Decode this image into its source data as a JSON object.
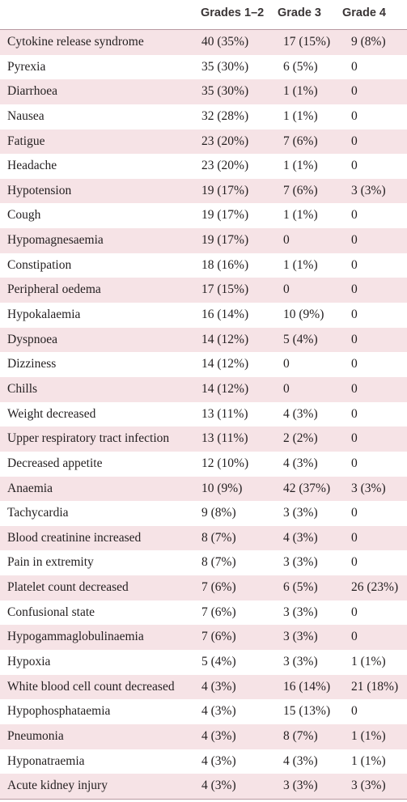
{
  "columns": [
    "",
    "Grades 1–2",
    "Grade 3",
    "Grade 4"
  ],
  "rows": [
    {
      "event": "Cytokine release syndrome",
      "g12": "40 (35%)",
      "g3": "17 (15%)",
      "g4": "9 (8%)"
    },
    {
      "event": "Pyrexia",
      "g12": "35 (30%)",
      "g3": "6 (5%)",
      "g4": "0"
    },
    {
      "event": "Diarrhoea",
      "g12": "35 (30%)",
      "g3": "1 (1%)",
      "g4": "0"
    },
    {
      "event": "Nausea",
      "g12": "32 (28%)",
      "g3": "1 (1%)",
      "g4": "0"
    },
    {
      "event": "Fatigue",
      "g12": "23 (20%)",
      "g3": "7 (6%)",
      "g4": "0"
    },
    {
      "event": "Headache",
      "g12": "23 (20%)",
      "g3": "1 (1%)",
      "g4": "0"
    },
    {
      "event": "Hypotension",
      "g12": "19 (17%)",
      "g3": "7 (6%)",
      "g4": "3 (3%)"
    },
    {
      "event": "Cough",
      "g12": "19 (17%)",
      "g3": "1 (1%)",
      "g4": "0"
    },
    {
      "event": "Hypomagnesaemia",
      "g12": "19 (17%)",
      "g3": "0",
      "g4": "0"
    },
    {
      "event": "Constipation",
      "g12": "18 (16%)",
      "g3": "1 (1%)",
      "g4": "0"
    },
    {
      "event": "Peripheral oedema",
      "g12": "17 (15%)",
      "g3": "0",
      "g4": "0"
    },
    {
      "event": "Hypokalaemia",
      "g12": "16 (14%)",
      "g3": "10 (9%)",
      "g4": "0"
    },
    {
      "event": "Dyspnoea",
      "g12": "14 (12%)",
      "g3": "5 (4%)",
      "g4": "0"
    },
    {
      "event": "Dizziness",
      "g12": "14 (12%)",
      "g3": "0",
      "g4": "0"
    },
    {
      "event": "Chills",
      "g12": "14 (12%)",
      "g3": "0",
      "g4": "0"
    },
    {
      "event": "Weight decreased",
      "g12": "13 (11%)",
      "g3": "4 (3%)",
      "g4": "0"
    },
    {
      "event": "Upper respiratory tract infection",
      "g12": "13 (11%)",
      "g3": "2 (2%)",
      "g4": "0"
    },
    {
      "event": "Decreased appetite",
      "g12": "12 (10%)",
      "g3": "4 (3%)",
      "g4": "0"
    },
    {
      "event": "Anaemia",
      "g12": "10 (9%)",
      "g3": "42 (37%)",
      "g4": "3 (3%)"
    },
    {
      "event": "Tachycardia",
      "g12": "9 (8%)",
      "g3": "3 (3%)",
      "g4": "0"
    },
    {
      "event": "Blood creatinine increased",
      "g12": "8 (7%)",
      "g3": "4 (3%)",
      "g4": "0"
    },
    {
      "event": "Pain in extremity",
      "g12": "8 (7%)",
      "g3": "3 (3%)",
      "g4": "0"
    },
    {
      "event": "Platelet count decreased",
      "g12": "7 (6%)",
      "g3": "6 (5%)",
      "g4": "26 (23%)"
    },
    {
      "event": "Confusional state",
      "g12": "7 (6%)",
      "g3": "3 (3%)",
      "g4": "0"
    },
    {
      "event": "Hypogammaglobulinaemia",
      "g12": "7 (6%)",
      "g3": "3 (3%)",
      "g4": "0"
    },
    {
      "event": "Hypoxia",
      "g12": "5 (4%)",
      "g3": "3 (3%)",
      "g4": "1 (1%)"
    },
    {
      "event": "White blood cell count decreased",
      "g12": "4 (3%)",
      "g3": "16 (14%)",
      "g4": "21 (18%)"
    },
    {
      "event": "Hypophosphataemia",
      "g12": "4 (3%)",
      "g3": "15 (13%)",
      "g4": "0"
    },
    {
      "event": "Pneumonia",
      "g12": "4 (3%)",
      "g3": "8 (7%)",
      "g4": "1 (1%)"
    },
    {
      "event": "Hyponatraemia",
      "g12": "4 (3%)",
      "g3": "4 (3%)",
      "g4": "1 (1%)"
    },
    {
      "event": "Acute kidney injury",
      "g12": "4 (3%)",
      "g3": "3 (3%)",
      "g4": "3 (3%)"
    }
  ],
  "colors": {
    "shade": "#f6e3e6",
    "rule": "#b89aa2",
    "text": "#231f20"
  }
}
